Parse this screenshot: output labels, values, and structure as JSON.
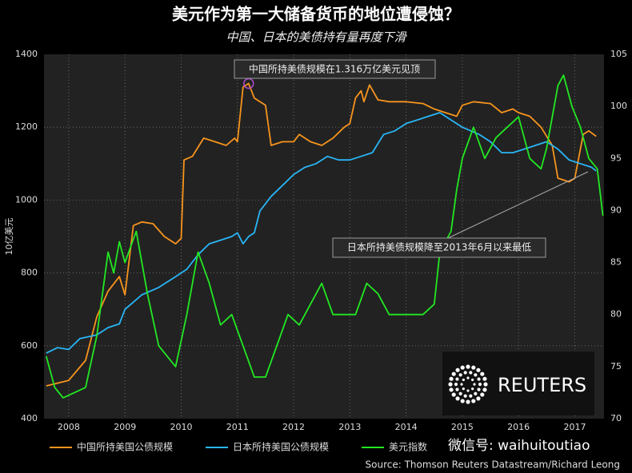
{
  "chart_data": {
    "type": "line",
    "title": "美元作为第一大储备货币的地位遭侵蚀？",
    "subtitle": "中国、日本的美债持有量再度下滑",
    "y_label": "10亿美元",
    "xlim": [
      2007.56,
      2017.52
    ],
    "xticks": [
      2008,
      2009,
      2010,
      2011,
      2012,
      2013,
      2014,
      2015,
      2016,
      2017
    ],
    "ylim": [
      400,
      1400
    ],
    "yticks": [
      400,
      600,
      800,
      1000,
      1200,
      1400
    ],
    "y2lim": [
      70,
      105
    ],
    "y2ticks": [
      70,
      75,
      80,
      85,
      90,
      95,
      100,
      105
    ],
    "grid": true,
    "legend": "bottom",
    "series": [
      {
        "name": "中国所持美国公债规模",
        "color": "#f7941d",
        "x": [
          2007.6,
          2008.0,
          2008.3,
          2008.5,
          2008.7,
          2008.9,
          2009.0,
          2009.15,
          2009.3,
          2009.5,
          2009.7,
          2009.9,
          2010.0,
          2010.05,
          2010.2,
          2010.4,
          2010.6,
          2010.8,
          2010.95,
          2011.0,
          2011.1,
          2011.2,
          2011.3,
          2011.5,
          2011.6,
          2011.8,
          2012.0,
          2012.1,
          2012.3,
          2012.5,
          2012.7,
          2012.9,
          2013.0,
          2013.1,
          2013.2,
          2013.25,
          2013.35,
          2013.5,
          2013.7,
          2014.0,
          2014.3,
          2014.5,
          2014.7,
          2014.9,
          2015.0,
          2015.2,
          2015.5,
          2015.7,
          2015.9,
          2016.0,
          2016.2,
          2016.4,
          2016.6,
          2016.7,
          2016.9,
          2017.0,
          2017.15,
          2017.25,
          2017.38
        ],
        "values": [
          490,
          505,
          560,
          680,
          750,
          790,
          740,
          930,
          940,
          935,
          900,
          880,
          895,
          1110,
          1120,
          1170,
          1160,
          1150,
          1170,
          1160,
          1310,
          1320,
          1280,
          1260,
          1150,
          1160,
          1160,
          1180,
          1160,
          1150,
          1170,
          1200,
          1210,
          1280,
          1300,
          1270,
          1316,
          1275,
          1270,
          1270,
          1265,
          1250,
          1240,
          1230,
          1260,
          1270,
          1265,
          1240,
          1250,
          1240,
          1230,
          1200,
          1150,
          1060,
          1050,
          1060,
          1180,
          1190,
          1175
        ]
      },
      {
        "name": "日本所持美国公债规模",
        "color": "#29b6f6",
        "x": [
          2007.6,
          2007.8,
          2008.0,
          2008.2,
          2008.5,
          2008.7,
          2008.9,
          2009.0,
          2009.3,
          2009.6,
          2009.9,
          2010.1,
          2010.3,
          2010.5,
          2010.7,
          2010.9,
          2011.0,
          2011.1,
          2011.2,
          2011.3,
          2011.4,
          2011.6,
          2011.8,
          2012.0,
          2012.2,
          2012.4,
          2012.6,
          2012.8,
          2013.0,
          2013.2,
          2013.4,
          2013.6,
          2013.8,
          2014.0,
          2014.2,
          2014.4,
          2014.6,
          2014.8,
          2015.0,
          2015.3,
          2015.5,
          2015.7,
          2015.9,
          2016.1,
          2016.3,
          2016.5,
          2016.7,
          2016.9,
          2017.1,
          2017.3,
          2017.38
        ],
        "values": [
          580,
          595,
          590,
          620,
          630,
          650,
          660,
          700,
          740,
          760,
          790,
          810,
          850,
          880,
          890,
          900,
          910,
          880,
          900,
          910,
          970,
          1010,
          1040,
          1070,
          1090,
          1100,
          1120,
          1110,
          1110,
          1120,
          1130,
          1180,
          1190,
          1210,
          1220,
          1230,
          1240,
          1220,
          1200,
          1180,
          1160,
          1130,
          1130,
          1140,
          1150,
          1160,
          1140,
          1110,
          1100,
          1090,
          1080
        ]
      },
      {
        "name": "美元指数",
        "color": "#22e822",
        "axis": "y2",
        "x": [
          2007.6,
          2007.75,
          2007.9,
          2008.1,
          2008.3,
          2008.5,
          2008.7,
          2008.8,
          2008.9,
          2009.0,
          2009.2,
          2009.4,
          2009.6,
          2009.9,
          2010.1,
          2010.3,
          2010.5,
          2010.7,
          2010.9,
          2011.1,
          2011.3,
          2011.5,
          2011.7,
          2011.9,
          2012.1,
          2012.3,
          2012.5,
          2012.7,
          2012.9,
          2013.1,
          2013.3,
          2013.5,
          2013.7,
          2013.9,
          2014.1,
          2014.3,
          2014.5,
          2014.6,
          2014.8,
          2014.9,
          2015.0,
          2015.2,
          2015.4,
          2015.6,
          2015.8,
          2016.0,
          2016.2,
          2016.4,
          2016.5,
          2016.7,
          2016.8,
          2016.95,
          2017.1,
          2017.25,
          2017.4,
          2017.5
        ],
        "values": [
          76,
          73,
          72,
          72.5,
          73,
          78,
          86,
          84,
          87,
          85,
          88,
          82,
          77,
          75,
          80,
          86,
          83,
          79,
          80,
          77,
          74,
          74,
          77,
          80,
          79,
          81,
          83,
          80,
          80,
          80,
          83,
          82,
          80,
          80,
          80,
          80,
          81,
          86,
          88,
          92,
          95,
          98,
          95,
          97,
          98,
          99,
          95,
          94,
          96,
          102,
          103,
          100,
          98,
          95,
          94,
          89.5
        ]
      }
    ],
    "annotations": [
      "中国所持美债规模在1.316万亿美元见顶",
      "日本所持美债规模降至2013年6月以来最低"
    ],
    "logo": "REUTERS",
    "watermark": "微信号: waihuitoutiao",
    "source": "Source: Thomson Reuters Datastream/Richard Leong"
  }
}
